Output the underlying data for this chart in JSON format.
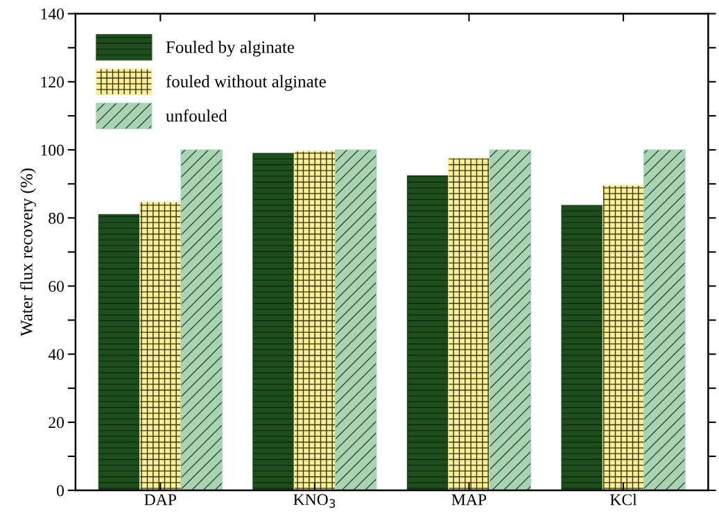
{
  "chart_data": {
    "type": "bar",
    "ylabel": "Water flux recovery (%)",
    "categories": [
      "DAP",
      "KNO$_{3}$",
      "MAP",
      "KCl"
    ],
    "series": [
      {
        "name": "Fouled by alginate",
        "color": "#1e4d1e",
        "values": [
          81.0,
          99.0,
          92.4,
          83.7
        ]
      },
      {
        "name": "fouled without alginate",
        "color": "#f7f09a",
        "values": [
          84.7,
          99.6,
          97.6,
          89.6
        ]
      },
      {
        "name": "unfouled",
        "color": "#a8d4b4",
        "values": [
          100,
          100,
          100,
          100
        ]
      }
    ],
    "ylim": [
      0,
      140
    ],
    "yticks": [
      0,
      {
        "value": 10,
        "label": null
      },
      20,
      {
        "value": 30,
        "label": null
      },
      40,
      {
        "value": 50,
        "label": null
      },
      60,
      {
        "value": 70,
        "label": null
      },
      80,
      {
        "value": 90,
        "label": null
      },
      100,
      {
        "value": 110,
        "label": null
      },
      120,
      {
        "value": 130,
        "label": null
      },
      140
    ],
    "grid": false,
    "legend": "top left"
  }
}
